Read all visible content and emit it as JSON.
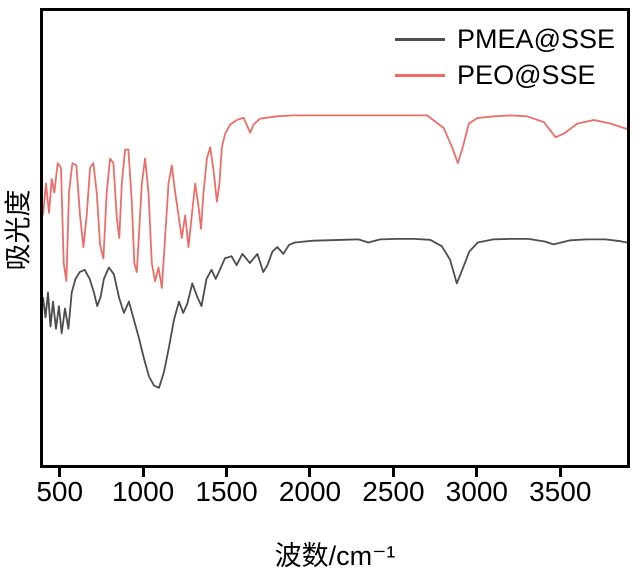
{
  "figure": {
    "background": "#ffffff",
    "frame_color": "#000000"
  },
  "chart_data": {
    "type": "line",
    "title": "",
    "xlabel": "波数/cm⁻¹",
    "ylabel": "吸光度",
    "xlim": [
      400,
      3900
    ],
    "ylim": [
      0,
      1
    ],
    "xticks": [
      500,
      1000,
      1500,
      2000,
      2500,
      3000,
      3500
    ],
    "yticks": [],
    "grid": false,
    "legend_position": "top-right-inside",
    "series": [
      {
        "name": "PMEA@SSE",
        "color": "#4d4d4d",
        "points": [
          [
            400,
            0.37
          ],
          [
            415,
            0.325
          ],
          [
            430,
            0.38
          ],
          [
            445,
            0.305
          ],
          [
            460,
            0.36
          ],
          [
            478,
            0.3
          ],
          [
            495,
            0.35
          ],
          [
            512,
            0.29
          ],
          [
            532,
            0.345
          ],
          [
            552,
            0.3
          ],
          [
            572,
            0.38
          ],
          [
            595,
            0.41
          ],
          [
            620,
            0.425
          ],
          [
            650,
            0.43
          ],
          [
            680,
            0.41
          ],
          [
            705,
            0.38
          ],
          [
            725,
            0.35
          ],
          [
            745,
            0.37
          ],
          [
            765,
            0.41
          ],
          [
            795,
            0.435
          ],
          [
            825,
            0.42
          ],
          [
            855,
            0.37
          ],
          [
            885,
            0.335
          ],
          [
            915,
            0.36
          ],
          [
            945,
            0.32
          ],
          [
            975,
            0.28
          ],
          [
            1005,
            0.235
          ],
          [
            1035,
            0.195
          ],
          [
            1065,
            0.175
          ],
          [
            1095,
            0.17
          ],
          [
            1125,
            0.205
          ],
          [
            1155,
            0.26
          ],
          [
            1185,
            0.32
          ],
          [
            1215,
            0.36
          ],
          [
            1240,
            0.335
          ],
          [
            1265,
            0.355
          ],
          [
            1295,
            0.4
          ],
          [
            1325,
            0.37
          ],
          [
            1350,
            0.35
          ],
          [
            1380,
            0.41
          ],
          [
            1410,
            0.43
          ],
          [
            1435,
            0.41
          ],
          [
            1460,
            0.43
          ],
          [
            1490,
            0.455
          ],
          [
            1530,
            0.46
          ],
          [
            1560,
            0.44
          ],
          [
            1595,
            0.465
          ],
          [
            1640,
            0.445
          ],
          [
            1685,
            0.465
          ],
          [
            1720,
            0.425
          ],
          [
            1745,
            0.44
          ],
          [
            1775,
            0.47
          ],
          [
            1805,
            0.48
          ],
          [
            1840,
            0.465
          ],
          [
            1875,
            0.485
          ],
          [
            1910,
            0.49
          ],
          [
            1960,
            0.492
          ],
          [
            2020,
            0.494
          ],
          [
            2100,
            0.495
          ],
          [
            2200,
            0.496
          ],
          [
            2290,
            0.497
          ],
          [
            2350,
            0.49
          ],
          [
            2420,
            0.497
          ],
          [
            2520,
            0.498
          ],
          [
            2620,
            0.498
          ],
          [
            2720,
            0.496
          ],
          [
            2790,
            0.482
          ],
          [
            2840,
            0.452
          ],
          [
            2880,
            0.4
          ],
          [
            2915,
            0.432
          ],
          [
            2955,
            0.47
          ],
          [
            3005,
            0.49
          ],
          [
            3100,
            0.497
          ],
          [
            3200,
            0.498
          ],
          [
            3310,
            0.498
          ],
          [
            3410,
            0.492
          ],
          [
            3460,
            0.486
          ],
          [
            3560,
            0.495
          ],
          [
            3660,
            0.497
          ],
          [
            3770,
            0.497
          ],
          [
            3860,
            0.493
          ],
          [
            3900,
            0.49
          ]
        ]
      },
      {
        "name": "PEO@SSE",
        "color": "#ed6d68",
        "points": [
          [
            400,
            0.55
          ],
          [
            418,
            0.62
          ],
          [
            436,
            0.555
          ],
          [
            452,
            0.63
          ],
          [
            468,
            0.6
          ],
          [
            488,
            0.665
          ],
          [
            508,
            0.655
          ],
          [
            524,
            0.445
          ],
          [
            540,
            0.405
          ],
          [
            556,
            0.6
          ],
          [
            576,
            0.665
          ],
          [
            600,
            0.66
          ],
          [
            622,
            0.55
          ],
          [
            642,
            0.48
          ],
          [
            662,
            0.55
          ],
          [
            682,
            0.655
          ],
          [
            702,
            0.665
          ],
          [
            722,
            0.6
          ],
          [
            742,
            0.485
          ],
          [
            762,
            0.455
          ],
          [
            782,
            0.6
          ],
          [
            802,
            0.675
          ],
          [
            822,
            0.665
          ],
          [
            842,
            0.545
          ],
          [
            857,
            0.5
          ],
          [
            872,
            0.62
          ],
          [
            892,
            0.695
          ],
          [
            912,
            0.695
          ],
          [
            932,
            0.58
          ],
          [
            947,
            0.445
          ],
          [
            962,
            0.425
          ],
          [
            977,
            0.52
          ],
          [
            992,
            0.62
          ],
          [
            1012,
            0.675
          ],
          [
            1032,
            0.6
          ],
          [
            1052,
            0.445
          ],
          [
            1072,
            0.405
          ],
          [
            1092,
            0.435
          ],
          [
            1112,
            0.39
          ],
          [
            1132,
            0.5
          ],
          [
            1152,
            0.62
          ],
          [
            1172,
            0.66
          ],
          [
            1192,
            0.6
          ],
          [
            1212,
            0.55
          ],
          [
            1232,
            0.5
          ],
          [
            1252,
            0.55
          ],
          [
            1272,
            0.48
          ],
          [
            1292,
            0.55
          ],
          [
            1312,
            0.62
          ],
          [
            1332,
            0.57
          ],
          [
            1347,
            0.52
          ],
          [
            1362,
            0.6
          ],
          [
            1382,
            0.675
          ],
          [
            1402,
            0.7
          ],
          [
            1422,
            0.65
          ],
          [
            1442,
            0.58
          ],
          [
            1457,
            0.62
          ],
          [
            1472,
            0.7
          ],
          [
            1492,
            0.73
          ],
          [
            1522,
            0.75
          ],
          [
            1562,
            0.76
          ],
          [
            1602,
            0.765
          ],
          [
            1642,
            0.732
          ],
          [
            1662,
            0.75
          ],
          [
            1702,
            0.763
          ],
          [
            1802,
            0.768
          ],
          [
            1902,
            0.77
          ],
          [
            2002,
            0.77
          ],
          [
            2102,
            0.77
          ],
          [
            2202,
            0.77
          ],
          [
            2302,
            0.77
          ],
          [
            2402,
            0.77
          ],
          [
            2502,
            0.77
          ],
          [
            2602,
            0.77
          ],
          [
            2702,
            0.77
          ],
          [
            2802,
            0.742
          ],
          [
            2852,
            0.7
          ],
          [
            2886,
            0.665
          ],
          [
            2916,
            0.7
          ],
          [
            2952,
            0.752
          ],
          [
            3002,
            0.764
          ],
          [
            3102,
            0.768
          ],
          [
            3202,
            0.77
          ],
          [
            3302,
            0.768
          ],
          [
            3402,
            0.755
          ],
          [
            3472,
            0.722
          ],
          [
            3522,
            0.73
          ],
          [
            3602,
            0.752
          ],
          [
            3702,
            0.76
          ],
          [
            3802,
            0.752
          ],
          [
            3900,
            0.74
          ]
        ]
      }
    ]
  }
}
